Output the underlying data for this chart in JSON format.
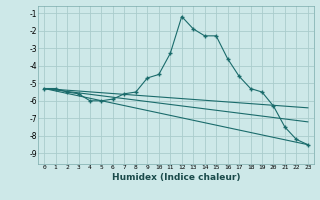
{
  "xlabel": "Humidex (Indice chaleur)",
  "bg_color": "#cde8e8",
  "grid_color": "#aacccc",
  "line_color": "#1a6b6b",
  "xlim": [
    -0.5,
    23.5
  ],
  "ylim": [
    -9.6,
    -0.6
  ],
  "xticks": [
    0,
    1,
    2,
    3,
    4,
    5,
    6,
    7,
    8,
    9,
    10,
    11,
    12,
    13,
    14,
    15,
    16,
    17,
    18,
    19,
    20,
    21,
    22,
    23
  ],
  "yticks": [
    -9,
    -8,
    -7,
    -6,
    -5,
    -4,
    -3,
    -2,
    -1
  ],
  "series1_x": [
    0,
    1,
    2,
    3,
    4,
    5,
    6,
    7,
    8,
    9,
    10,
    11,
    12,
    13,
    14,
    15,
    16,
    17,
    18,
    19,
    20,
    21,
    22,
    23
  ],
  "series1_y": [
    -5.3,
    -5.3,
    -5.5,
    -5.6,
    -6.0,
    -6.0,
    -5.9,
    -5.6,
    -5.5,
    -4.7,
    -4.5,
    -3.3,
    -1.2,
    -1.9,
    -2.3,
    -2.3,
    -3.6,
    -4.6,
    -5.3,
    -5.5,
    -6.3,
    -7.5,
    -8.2,
    -8.5
  ],
  "series2_x": [
    0,
    23
  ],
  "series2_y": [
    -5.3,
    -8.5
  ],
  "series3_x": [
    0,
    23
  ],
  "series3_y": [
    -5.3,
    -6.4
  ],
  "series4_x": [
    0,
    23
  ],
  "series4_y": [
    -5.3,
    -7.2
  ]
}
